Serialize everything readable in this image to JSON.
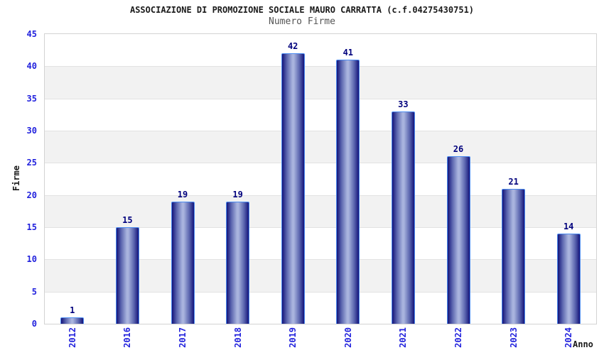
{
  "chart_data": {
    "type": "bar",
    "title": "ASSOCIAZIONE DI PROMOZIONE SOCIALE MAURO CARRATTA (c.f.04275430751)",
    "subtitle": "Numero Firme",
    "xlabel": "Anno",
    "ylabel": "Firme",
    "categories": [
      "2012",
      "2016",
      "2017",
      "2018",
      "2019",
      "2020",
      "2021",
      "2022",
      "2023",
      "2024"
    ],
    "values": [
      1,
      15,
      19,
      19,
      42,
      41,
      33,
      26,
      21,
      14
    ],
    "ylim": [
      0,
      45
    ],
    "ytick_step": 5,
    "yticks": [
      0,
      5,
      10,
      15,
      20,
      25,
      30,
      35,
      40,
      45
    ],
    "grid": "horizontal-bands-alternating",
    "legend": "none",
    "colors": {
      "bar_edge": "#14147a",
      "bar_mid": "#5d68b0",
      "bar_center": "#a9b4de",
      "bar_border": "#4b8bf0",
      "tick_label": "#2222dd",
      "value_label": "#00007d",
      "title": "#1a1a1a",
      "subtitle": "#555555",
      "band_gray": "#f2f2f2",
      "gridline": "#e2e2e2",
      "plot_border": "#d3d3d3",
      "background": "#ffffff"
    }
  }
}
